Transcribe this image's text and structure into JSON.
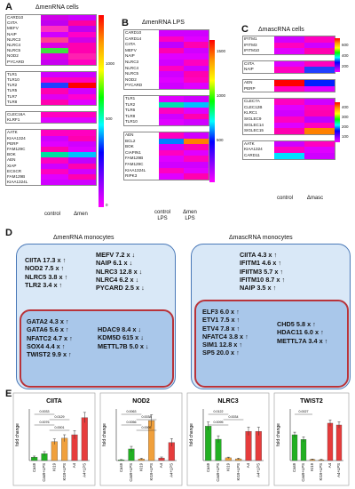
{
  "panel_A": {
    "letter": "A",
    "title": "ΔmenRNA cells",
    "col_labels": [
      "control",
      "Δmen"
    ],
    "cb_ticks": [
      "1000",
      "500",
      "0"
    ]
  },
  "panel_B": {
    "letter": "B",
    "title": "ΔmenRNA LPS",
    "col_labels": [
      "control LPS",
      "Δmen LPS"
    ],
    "cb_ticks": [
      "1500",
      "1000",
      "500"
    ]
  },
  "panel_C": {
    "letter": "C",
    "title": "ΔmascRNA cells",
    "col_labels": [
      "control",
      "Δmasc"
    ],
    "cb1_ticks": [
      "600",
      "400",
      "200"
    ],
    "cb2_ticks": [
      "400",
      "300",
      "200",
      "100"
    ]
  },
  "panel_D": {
    "letter": "D",
    "left": {
      "title": "ΔmenRNA monocytes",
      "col1": [
        "CIITA  17.3 x ↑",
        "NOD2  7.5 x ↑",
        "NLRC5  3.8 x ↑",
        "TLR2  3.4 x ↑"
      ],
      "col2": [
        "MEFV  7.2 x ↓",
        "NAIP  6.1 x ↓",
        "NLRC3  12.8 x ↓",
        "NLRC4  6.2 x ↓",
        "PYCARD  2.5 x ↓"
      ],
      "inner1": [
        "GATA2  4.3 x ↑",
        "GATA6  5.6 x ↑",
        "NFATC2  4.7 x ↑",
        "SOX4  4.4 x ↑",
        "TWIST2  9.9 x ↑"
      ],
      "inner2": [
        "HDAC9  8.4 x ↓",
        "KDM5D  615 x ↓",
        "METTL7B  5.0 x ↓"
      ]
    },
    "right": {
      "title": "ΔmascRNA monocytes",
      "col1": [
        "CIITA  4.3 x ↑",
        "IFITM1  4.6 x ↑",
        "IFIITM3  5.7 x ↑",
        "IFITM10  8.7 x ↑",
        "NAIP  3.5 x ↑"
      ],
      "inner1": [
        "ELF3  6.0 x ↑",
        "ETV1  7.5 x ↑",
        "ETV4  7.8 x ↑",
        "NFATC4  3.8 x ↑",
        "SIM1  12.8 x ↑",
        "SP5  20.0 x ↑"
      ],
      "inner2": [
        "CHD5  5.8 x ↑",
        "HDAC11  6.0 x ↑",
        "METTL7A  3.4 x ↑"
      ]
    }
  },
  "panel_E": {
    "letter": "E"
  },
  "colors": {
    "bar_green": "#22b022",
    "bar_orange": "#f0a03c",
    "bar_red": "#e63c3c",
    "box_fill": "#d9e8f7",
    "inner_fill": "#a9c7ea",
    "inner_border": "#b8333a"
  },
  "chart_data": [
    {
      "type": "heatmap",
      "title": "ΔmenRNA cells",
      "columns": [
        "control",
        "Δmen"
      ],
      "scale": [
        0,
        1000
      ],
      "groups": [
        {
          "rows": [
            "CARD10",
            "CIITA",
            "MEFV",
            "NAIP",
            "NLRC3",
            "NLRC4",
            "NLRC5",
            "NOD2",
            "PYCARD"
          ],
          "colors": [
            [
              "#d000e8",
              "#cc00ff"
            ],
            [
              "#c000f0",
              "#ff00a0"
            ],
            [
              "#ff30c0",
              "#c000f0"
            ],
            [
              "#d000ff",
              "#ff00c8"
            ],
            [
              "#ff4090",
              "#d000e8"
            ],
            [
              "#e000e0",
              "#ff00b0"
            ],
            [
              "#40e040",
              "#ff00b0"
            ],
            [
              "#e000e0",
              "#ff20b0"
            ],
            [
              "#c800f0",
              "#ff00c0"
            ]
          ]
        },
        {
          "rows": [
            "TLR1",
            "TLR10",
            "TLR2",
            "TLR5",
            "TLR7",
            "TLR8"
          ],
          "colors": [
            [
              "#d000ff",
              "#d000ff"
            ],
            [
              "#ff00c0",
              "#ff00c0"
            ],
            [
              "#2040ff",
              "#ff0000"
            ],
            [
              "#ff00b0",
              "#d000ff"
            ],
            [
              "#e000f0",
              "#ff00d0"
            ],
            [
              "#ff00b0",
              "#e000ff"
            ]
          ]
        },
        {
          "rows": [
            "CLEC16A",
            "KLRF1"
          ],
          "colors": [
            [
              "#ff00c0",
              "#ff00c0"
            ],
            [
              "#e000ff",
              "#e000ff"
            ]
          ]
        },
        {
          "rows": [
            "AATK",
            "KIAA1324",
            "PERP",
            "FAM129C",
            "BOK",
            "AEN",
            "XIAP",
            "ECSCR",
            "FAM129B",
            "KIAA1324L"
          ],
          "colors": [
            [
              "#ff00c0",
              "#ff00c0"
            ],
            [
              "#d000ff",
              "#ff00b0"
            ],
            [
              "#e000ff",
              "#d000ff"
            ],
            [
              "#ff00b0",
              "#e000ff"
            ],
            [
              "#00e0a0",
              "#00c0ff"
            ],
            [
              "#ff00c0",
              "#c000ff"
            ],
            [
              "#d000ff",
              "#ff00b0"
            ],
            [
              "#ff00c0",
              "#d000ff"
            ],
            [
              "#e000ff",
              "#ff00b0"
            ],
            [
              "#d000ff",
              "#d000ff"
            ]
          ]
        }
      ]
    },
    {
      "type": "heatmap",
      "title": "ΔmenRNA LPS",
      "columns": [
        "control LPS",
        "Δmen LPS"
      ],
      "scale": [
        0,
        1500
      ],
      "groups": [
        {
          "rows": [
            "CARD10",
            "CARD14",
            "CIITA",
            "MEFV",
            "NAIP",
            "NLRC3",
            "NLRC4",
            "NLRC5",
            "NOD2",
            "PYCARD"
          ],
          "colors": [
            [
              "#d000ff",
              "#d000ff"
            ],
            [
              "#ff00c0",
              "#e000ff"
            ],
            [
              "#c000ff",
              "#ff00b0"
            ],
            [
              "#ff00b0",
              "#d000ff"
            ],
            [
              "#e000ff",
              "#e000ff"
            ],
            [
              "#d000ff",
              "#ff00c0"
            ],
            [
              "#ff00c0",
              "#d000ff"
            ],
            [
              "#d000ff",
              "#ff00b0"
            ],
            [
              "#e000ff",
              "#ff00c0"
            ],
            [
              "#d000ff",
              "#e000ff"
            ]
          ]
        },
        {
          "rows": [
            "TLR1",
            "TLR2",
            "TLR6",
            "TLR8",
            "TLR10"
          ],
          "colors": [
            [
              "#e000ff",
              "#d000ff"
            ],
            [
              "#00e0b0",
              "#00c0ff"
            ],
            [
              "#ff00c0",
              "#e000ff"
            ],
            [
              "#d000ff",
              "#ff00b0"
            ],
            [
              "#e000ff",
              "#d000ff"
            ]
          ]
        },
        {
          "rows": [
            "AEN",
            "BCL2",
            "BOK",
            "CIAPIN1",
            "FAM129B",
            "FAM129C",
            "KIAA1324L",
            "RIPK3"
          ],
          "colors": [
            [
              "#ff00c0",
              "#d000ff"
            ],
            [
              "#0080ff",
              "#ff8000"
            ],
            [
              "#d000ff",
              "#ff00b0"
            ],
            [
              "#ff00c0",
              "#e000ff"
            ],
            [
              "#e000ff",
              "#ff00c0"
            ],
            [
              "#d000ff",
              "#d000ff"
            ],
            [
              "#ff00c0",
              "#e000ff"
            ],
            [
              "#e000ff",
              "#ff00b0"
            ]
          ]
        }
      ]
    },
    {
      "type": "heatmap",
      "title": "ΔmascRNA cells",
      "columns": [
        "control",
        "Δmasc"
      ],
      "scale": [
        0,
        600
      ],
      "groups": [
        {
          "rows": [
            "IFITM1",
            "IFITM3",
            "IFITM10"
          ],
          "colors": [
            [
              "#d000ff",
              "#ff00c0"
            ],
            [
              "#ff00c0",
              "#d000ff"
            ],
            [
              "#e000ff",
              "#ff00b0"
            ]
          ]
        },
        {
          "rows": [
            "CIITA",
            "NAIP"
          ],
          "colors": [
            [
              "#e000ff",
              "#ff00c0"
            ],
            [
              "#ff00c0",
              "#2040ff"
            ]
          ]
        },
        {
          "rows": [
            "AEN",
            "PERP"
          ],
          "colors": [
            [
              "#ff0000",
              "#0020ff"
            ],
            [
              "#ff00c0",
              "#e000ff"
            ]
          ]
        },
        {
          "rows": [
            "CLEC7A",
            "CLEC12B",
            "KLRC1",
            "SIGLEC9",
            "SIGLEC14",
            "SIGLEC15"
          ],
          "colors": [
            [
              "#ff00c0",
              "#d000ff"
            ],
            [
              "#e000ff",
              "#ff00c0"
            ],
            [
              "#d000ff",
              "#ff00b0"
            ],
            [
              "#ff00c0",
              "#c000ff"
            ],
            [
              "#e000ff",
              "#ff00c0"
            ],
            [
              "#ff00b0",
              "#ff8000"
            ]
          ]
        },
        {
          "rows": [
            "AATK",
            "KIAA1324",
            "CARD11"
          ],
          "colors": [
            [
              "#d000ff",
              "#ff00c0"
            ],
            [
              "#ff00c0",
              "#e000ff"
            ],
            [
              "#00e0ff",
              "#d000ff"
            ]
          ]
        }
      ]
    },
    {
      "type": "bar",
      "title": "CIITA",
      "ylabel": "fold change",
      "ylim": [
        0,
        15
      ],
      "categories": [
        "Cas9",
        "Cas9+LPS",
        "KI19",
        "KI19+LPS",
        "A4",
        "A4+LPS"
      ],
      "values": [
        1.0,
        2.0,
        5.5,
        6.5,
        7.5,
        12.5
      ],
      "errors": [
        0.3,
        0.6,
        0.8,
        1.0,
        1.2,
        1.5
      ],
      "colors": [
        "#22b022",
        "#22b022",
        "#f0a03c",
        "#f0a03c",
        "#e63c3c",
        "#e63c3c"
      ],
      "pvalues": [
        "0.0033",
        "0.0129",
        "0.0076",
        "0.0001"
      ]
    },
    {
      "type": "bar",
      "title": "NOD2",
      "ylabel": "fold change",
      "ylim": [
        0,
        80
      ],
      "categories": [
        "Cas9",
        "Cas9+LPS",
        "KI19",
        "KI19+LPS",
        "A4",
        "A4+LPS"
      ],
      "values": [
        1.0,
        18.0,
        2.5,
        62.0,
        4.0,
        28.0
      ],
      "errors": [
        0.5,
        4.0,
        1.0,
        9.0,
        1.5,
        6.0
      ],
      "colors": [
        "#22b022",
        "#22b022",
        "#f0a03c",
        "#f0a03c",
        "#e63c3c",
        "#e63c3c"
      ],
      "pvalues": [
        "0.0063",
        "0.0038",
        "0.0056",
        "0.0005"
      ]
    },
    {
      "type": "bar",
      "title": "NLRC3",
      "ylabel": "fold change",
      "ylim": [
        0,
        1.5
      ],
      "categories": [
        "Cas9",
        "Cas9+LPS",
        "KI19",
        "KI19+LPS",
        "A4",
        "A4+LPS"
      ],
      "values": [
        1.0,
        0.62,
        0.08,
        0.05,
        0.85,
        0.85
      ],
      "errors": [
        0.12,
        0.1,
        0.02,
        0.02,
        0.12,
        0.12
      ],
      "colors": [
        "#22b022",
        "#22b022",
        "#f0a03c",
        "#f0a03c",
        "#e63c3c",
        "#e63c3c"
      ],
      "pvalues": [
        "0.0122",
        "0.0034",
        "0.0095"
      ]
    },
    {
      "type": "bar",
      "title": "TWIST2",
      "ylabel": "fold change",
      "ylim": [
        0,
        2.0
      ],
      "categories": [
        "Cas9",
        "Cas9+LPS",
        "KI19",
        "KI19+LPS",
        "A4",
        "A4+LPS"
      ],
      "values": [
        1.0,
        0.82,
        0.04,
        0.03,
        1.45,
        1.38
      ],
      "errors": [
        0.1,
        0.1,
        0.02,
        0.02,
        0.12,
        0.12
      ],
      "colors": [
        "#22b022",
        "#22b022",
        "#f0a03c",
        "#f0a03c",
        "#e63c3c",
        "#e63c3c"
      ],
      "pvalues": [
        "0.0027"
      ]
    }
  ]
}
